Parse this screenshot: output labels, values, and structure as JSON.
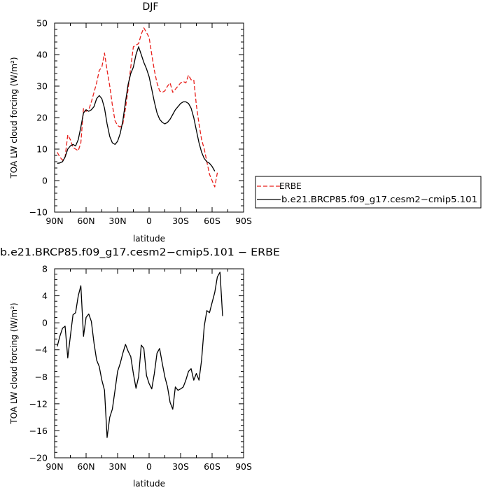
{
  "chart_data": [
    {
      "type": "line",
      "title": "DJF",
      "xlabel": "latitude",
      "ylabel": "TOA LW cloud forcing (W/m²)",
      "xlim": [
        90,
        -90
      ],
      "ylim": [
        -10,
        50
      ],
      "x_tick_labels": [
        "90N",
        "60N",
        "30N",
        "0",
        "30S",
        "60S",
        "90S"
      ],
      "x_tick_values": [
        90,
        60,
        30,
        0,
        -30,
        -60,
        -90
      ],
      "y_ticks": [
        -10,
        0,
        10,
        20,
        30,
        40,
        50
      ],
      "legend_position": "right",
      "series": [
        {
          "name": "ERBE",
          "color": "#e8201c",
          "style": "dashed",
          "points": [
            [
              87.5,
              9
            ],
            [
              85,
              7.5
            ],
            [
              82.5,
              6.5
            ],
            [
              80,
              7.5
            ],
            [
              77.5,
              14.5
            ],
            [
              75,
              13
            ],
            [
              72.5,
              10.5
            ],
            [
              70,
              10
            ],
            [
              67.5,
              9.5
            ],
            [
              65,
              12
            ],
            [
              62.5,
              23
            ],
            [
              60,
              22
            ],
            [
              57.5,
              22.5
            ],
            [
              55,
              25
            ],
            [
              52.5,
              28
            ],
            [
              50,
              31
            ],
            [
              47.5,
              35
            ],
            [
              45,
              36
            ],
            [
              42.5,
              40.5
            ],
            [
              40,
              35
            ],
            [
              37.5,
              30
            ],
            [
              35,
              24
            ],
            [
              32.5,
              19
            ],
            [
              30,
              17.5
            ],
            [
              27.5,
              17
            ],
            [
              25,
              18
            ],
            [
              22.5,
              23
            ],
            [
              20,
              29
            ],
            [
              17.5,
              36
            ],
            [
              15,
              42.5
            ],
            [
              12.5,
              43
            ],
            [
              10,
              43.5
            ],
            [
              7.5,
              46.5
            ],
            [
              5,
              48.5
            ],
            [
              2.5,
              47
            ],
            [
              0,
              45.5
            ],
            [
              -2.5,
              40
            ],
            [
              -5,
              35
            ],
            [
              -7.5,
              31
            ],
            [
              -10,
              28.5
            ],
            [
              -12.5,
              28
            ],
            [
              -15,
              28.5
            ],
            [
              -17.5,
              30
            ],
            [
              -20,
              31
            ],
            [
              -22.5,
              28
            ],
            [
              -25,
              29
            ],
            [
              -27.5,
              30
            ],
            [
              -30,
              31
            ],
            [
              -32.5,
              31.5
            ],
            [
              -35,
              31
            ],
            [
              -37.5,
              33.5
            ],
            [
              -40,
              32
            ],
            [
              -42.5,
              32
            ],
            [
              -45,
              24
            ],
            [
              -47.5,
              18
            ],
            [
              -50,
              13
            ],
            [
              -52.5,
              10
            ],
            [
              -55,
              6
            ],
            [
              -57.5,
              2
            ],
            [
              -60,
              0
            ],
            [
              -62.5,
              -2
            ],
            [
              -65,
              2.5
            ]
          ]
        },
        {
          "name": "b.e21.BRCP85.f09_g17.cesm2−cmip5.101",
          "color": "#000000",
          "style": "solid",
          "points": [
            [
              87.5,
              5.5
            ],
            [
              85,
              5.6
            ],
            [
              82.5,
              6
            ],
            [
              80,
              7.5
            ],
            [
              77.5,
              10
            ],
            [
              75,
              11
            ],
            [
              72.5,
              11.5
            ],
            [
              70,
              11
            ],
            [
              67.5,
              13
            ],
            [
              65,
              17
            ],
            [
              62.5,
              21.5
            ],
            [
              60,
              22.5
            ],
            [
              57.5,
              22
            ],
            [
              55,
              22.5
            ],
            [
              52.5,
              23.5
            ],
            [
              50,
              26
            ],
            [
              47.5,
              27
            ],
            [
              45,
              26
            ],
            [
              42.5,
              23
            ],
            [
              40,
              18
            ],
            [
              37.5,
              14
            ],
            [
              35,
              12
            ],
            [
              32.5,
              11.5
            ],
            [
              30,
              12.5
            ],
            [
              27.5,
              15
            ],
            [
              25,
              19
            ],
            [
              22.5,
              25
            ],
            [
              20,
              30.5
            ],
            [
              17.5,
              34
            ],
            [
              15,
              36
            ],
            [
              12.5,
              40
            ],
            [
              10,
              42.5
            ],
            [
              7.5,
              40
            ],
            [
              5,
              37.5
            ],
            [
              2.5,
              35.5
            ],
            [
              0,
              33
            ],
            [
              -2.5,
              29
            ],
            [
              -5,
              25
            ],
            [
              -7.5,
              21.5
            ],
            [
              -10,
              19.5
            ],
            [
              -12.5,
              18.5
            ],
            [
              -15,
              18
            ],
            [
              -17.5,
              18.5
            ],
            [
              -20,
              19.5
            ],
            [
              -22.5,
              21
            ],
            [
              -25,
              22.5
            ],
            [
              -27.5,
              23.5
            ],
            [
              -30,
              24.5
            ],
            [
              -32.5,
              25
            ],
            [
              -35,
              25
            ],
            [
              -37.5,
              24.5
            ],
            [
              -40,
              23
            ],
            [
              -42.5,
              20
            ],
            [
              -45,
              16
            ],
            [
              -47.5,
              12
            ],
            [
              -50,
              9
            ],
            [
              -52.5,
              7
            ],
            [
              -55,
              6
            ],
            [
              -57.5,
              5.5
            ],
            [
              -60,
              4.5
            ],
            [
              -62.5,
              3
            ]
          ]
        }
      ]
    },
    {
      "type": "line",
      "title": "b.e21.BRCP85.f09_g17.cesm2−cmip5.101  −  ERBE",
      "xlabel": "latitude",
      "ylabel": "TOA LW cloud forcing (W/m²)",
      "xlim": [
        90,
        -90
      ],
      "ylim": [
        -20,
        8
      ],
      "x_tick_labels": [
        "90N",
        "60N",
        "30N",
        "0",
        "30S",
        "60S",
        "90S"
      ],
      "x_tick_values": [
        90,
        60,
        30,
        0,
        -30,
        -60,
        -90
      ],
      "y_ticks": [
        -20,
        -16,
        -12,
        -8,
        -4,
        0,
        4,
        8
      ],
      "series": [
        {
          "color": "#000000",
          "style": "solid",
          "points": [
            [
              87.5,
              -3.5
            ],
            [
              85,
              -2
            ],
            [
              82.5,
              -0.8
            ],
            [
              80,
              -0.5
            ],
            [
              77.5,
              -5.2
            ],
            [
              75,
              -2
            ],
            [
              72.5,
              1.2
            ],
            [
              70,
              1.5
            ],
            [
              67.5,
              4
            ],
            [
              65,
              5.5
            ],
            [
              62.5,
              -2
            ],
            [
              60,
              0.8
            ],
            [
              57.5,
              1.3
            ],
            [
              55,
              0.2
            ],
            [
              52.5,
              -3
            ],
            [
              50,
              -5.5
            ],
            [
              47.5,
              -6.5
            ],
            [
              45,
              -8.5
            ],
            [
              42.5,
              -10
            ],
            [
              40,
              -17
            ],
            [
              37.5,
              -14
            ],
            [
              35,
              -12.8
            ],
            [
              32.5,
              -10
            ],
            [
              30,
              -7.2
            ],
            [
              27.5,
              -6
            ],
            [
              25,
              -4.5
            ],
            [
              22.5,
              -3.2
            ],
            [
              20,
              -4.2
            ],
            [
              17.5,
              -5
            ],
            [
              15,
              -7.5
            ],
            [
              12.5,
              -9.7
            ],
            [
              10,
              -8
            ],
            [
              7.5,
              -3.3
            ],
            [
              5,
              -3.8
            ],
            [
              2.5,
              -7.8
            ],
            [
              0,
              -9
            ],
            [
              -2.5,
              -9.8
            ],
            [
              -5,
              -7.5
            ],
            [
              -7.5,
              -4.5
            ],
            [
              -10,
              -3.8
            ],
            [
              -12.5,
              -6
            ],
            [
              -15,
              -8
            ],
            [
              -17.5,
              -9.5
            ],
            [
              -20,
              -11.8
            ],
            [
              -22.5,
              -12.8
            ],
            [
              -25,
              -9.5
            ],
            [
              -27.5,
              -10
            ],
            [
              -30,
              -9.8
            ],
            [
              -32.5,
              -9.5
            ],
            [
              -35,
              -8.5
            ],
            [
              -37.5,
              -7.2
            ],
            [
              -40,
              -6.8
            ],
            [
              -42.5,
              -8.5
            ],
            [
              -45,
              -7.5
            ],
            [
              -47.5,
              -8.5
            ],
            [
              -50,
              -5.5
            ],
            [
              -52.5,
              -0.5
            ],
            [
              -55,
              1.8
            ],
            [
              -57.5,
              1.5
            ],
            [
              -60,
              3
            ],
            [
              -62.5,
              4.5
            ],
            [
              -65,
              6.8
            ],
            [
              -67.5,
              7.5
            ],
            [
              -70,
              1
            ]
          ]
        }
      ]
    }
  ]
}
